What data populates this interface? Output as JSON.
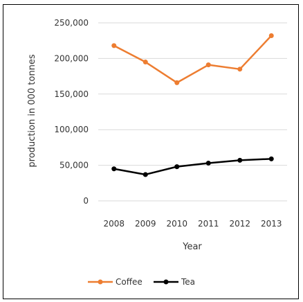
{
  "chart_data": {
    "type": "line",
    "categories": [
      "2008",
      "2009",
      "2010",
      "2011",
      "2012",
      "2013"
    ],
    "series": [
      {
        "name": "Coffee",
        "color": "#ed7d31",
        "values": [
          218000,
          195000,
          166000,
          191000,
          185000,
          232000
        ]
      },
      {
        "name": "Tea",
        "color": "#000000",
        "values": [
          45000,
          37000,
          48000,
          53000,
          57000,
          59000
        ]
      }
    ],
    "xlabel": "Year",
    "ylabel": "production in 000 tonnes",
    "ylim": [
      0,
      250000
    ],
    "yticks": [
      "0",
      "50,000",
      "100,000",
      "150,000",
      "200,000",
      "250,000"
    ],
    "grid": true,
    "legend_position": "bottom"
  }
}
